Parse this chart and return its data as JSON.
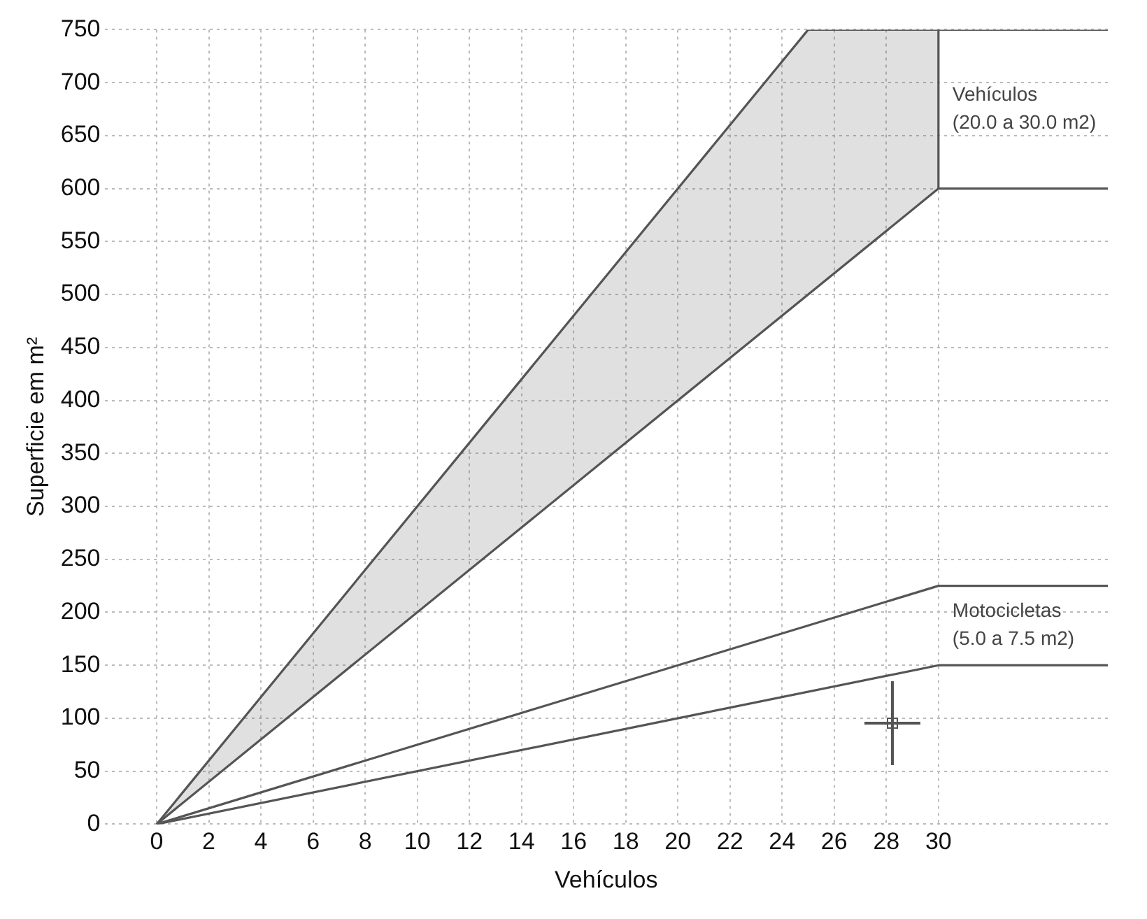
{
  "chart_data": {
    "type": "line",
    "xlabel": "Vehículos",
    "ylabel": "Superficie em m²",
    "xlim": [
      -2,
      36.5
    ],
    "xticks": [
      0,
      2,
      4,
      6,
      8,
      10,
      12,
      14,
      16,
      18,
      20,
      22,
      24,
      26,
      28,
      30
    ],
    "ylim": [
      0,
      750
    ],
    "yticks": [
      0,
      50,
      100,
      150,
      200,
      250,
      300,
      350,
      400,
      450,
      500,
      550,
      600,
      650,
      700,
      750
    ],
    "grid": true,
    "legend": false,
    "marker": "none",
    "line_style": "solid",
    "series": [
      {
        "color": "#555555",
        "x": [
          0,
          25,
          30,
          36.5
        ],
        "values": [
          0,
          750,
          750,
          750
        ],
        "lower": [
          0,
          500,
          600,
          null
        ],
        "upper": [
          0,
          750,
          750,
          null
        ]
      },
      {
        "color": "#555555",
        "x": [
          0,
          30,
          36.5
        ],
        "values": [
          0,
          600,
          600
        ]
      },
      {
        "color": "#555555",
        "x": [
          0,
          30,
          36.5
        ],
        "values": [
          0,
          225,
          225
        ]
      },
      {
        "color": "#555555",
        "x": [
          0,
          30,
          36.5
        ],
        "values": [
          0,
          150,
          150
        ]
      },
      {
        "color": "#555555",
        "x": [
          30,
          30
        ],
        "values": [
          600,
          750
        ]
      }
    ],
    "annotations": [
      "Vehículos\n(20.0 a 30.0 m2)",
      "Motocicletas\n(5.0 a 7.5 m2)"
    ]
  }
}
